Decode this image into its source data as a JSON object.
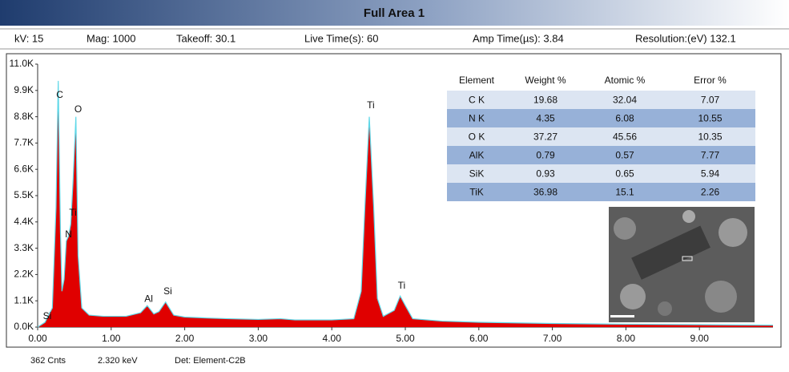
{
  "header": {
    "title": "Full Area 1",
    "fields": [
      "kV: 15",
      "Mag: 1000",
      "Takeoff: 30.1",
      "Live Time(s): 60",
      "Amp Time(µs): 3.84",
      "Resolution:(eV) 132.1"
    ]
  },
  "chart_data": {
    "type": "area",
    "color": "#e00000",
    "line_color": "#5fd8e8",
    "x": [
      0,
      0.1,
      0.2,
      0.25,
      0.28,
      0.31,
      0.33,
      0.36,
      0.39,
      0.42,
      0.45,
      0.48,
      0.52,
      0.55,
      0.6,
      0.7,
      0.9,
      1.2,
      1.4,
      1.49,
      1.58,
      1.65,
      1.74,
      1.85,
      2.0,
      2.3,
      2.6,
      3.0,
      3.3,
      3.5,
      4.0,
      4.3,
      4.4,
      4.45,
      4.51,
      4.57,
      4.62,
      4.7,
      4.85,
      4.93,
      5.0,
      5.1,
      5.5,
      6.0,
      7.0,
      8.0,
      9.0,
      10
    ],
    "values": [
      0,
      200,
      800,
      5000,
      10300,
      4000,
      1500,
      2000,
      3600,
      3800,
      4300,
      6000,
      8800,
      3000,
      800,
      500,
      450,
      450,
      600,
      900,
      550,
      650,
      1050,
      500,
      420,
      380,
      350,
      320,
      350,
      300,
      300,
      350,
      1500,
      5000,
      8800,
      5000,
      1200,
      450,
      700,
      1300,
      900,
      350,
      250,
      200,
      150,
      120,
      100,
      80
    ],
    "xlim": [
      0,
      10
    ],
    "ylim": [
      0,
      11000
    ],
    "xticks": [
      {
        "value": 0,
        "label": "0.00"
      },
      {
        "value": 1,
        "label": "1.00"
      },
      {
        "value": 2,
        "label": "2.00"
      },
      {
        "value": 3,
        "label": "3.00"
      },
      {
        "value": 4,
        "label": "4.00"
      },
      {
        "value": 5,
        "label": "5.00"
      },
      {
        "value": 6,
        "label": "6.00"
      },
      {
        "value": 7,
        "label": "7.00"
      },
      {
        "value": 8,
        "label": "8.00"
      },
      {
        "value": 9,
        "label": "9.00"
      }
    ],
    "yticks": [
      {
        "value": 0,
        "label": "0.0K"
      },
      {
        "value": 1100,
        "label": "1.1K"
      },
      {
        "value": 2200,
        "label": "2.2K"
      },
      {
        "value": 3300,
        "label": "3.3K"
      },
      {
        "value": 4400,
        "label": "4.4K"
      },
      {
        "value": 5500,
        "label": "5.5K"
      },
      {
        "value": 6600,
        "label": "6.6K"
      },
      {
        "value": 7700,
        "label": "7.7K"
      },
      {
        "value": 8800,
        "label": "8.8K"
      },
      {
        "value": 9900,
        "label": "9.9K"
      },
      {
        "value": 11000,
        "label": "11.0K"
      }
    ],
    "annotations": [
      {
        "text": "C",
        "x": 0.3,
        "y": 9700
      },
      {
        "text": "O",
        "x": 0.55,
        "y": 9090
      },
      {
        "text": "Ti",
        "x": 0.48,
        "y": 4760
      },
      {
        "text": "N",
        "x": 0.42,
        "y": 3860
      },
      {
        "text": "Si",
        "x": 0.13,
        "y": 440
      },
      {
        "text": "Al",
        "x": 1.51,
        "y": 1170
      },
      {
        "text": "Si",
        "x": 1.77,
        "y": 1480
      },
      {
        "text": "Ti",
        "x": 4.53,
        "y": 9260
      },
      {
        "text": "Ti",
        "x": 4.95,
        "y": 1710
      }
    ]
  },
  "table": {
    "columns": [
      "Element",
      "Weight %",
      "Atomic %",
      "Error %"
    ],
    "rows": [
      [
        "C K",
        19.68,
        32.04,
        7.07
      ],
      [
        "N K",
        4.35,
        6.08,
        10.55
      ],
      [
        "O K",
        37.27,
        45.56,
        10.35
      ],
      [
        "AlK",
        0.79,
        0.57,
        7.77
      ],
      [
        "SiK",
        0.93,
        0.65,
        5.94
      ],
      [
        "TiK",
        36.98,
        15.1,
        2.26
      ]
    ]
  },
  "footer": [
    "362 Cnts",
    "2.320 keV",
    "Det: Element-C2B"
  ]
}
